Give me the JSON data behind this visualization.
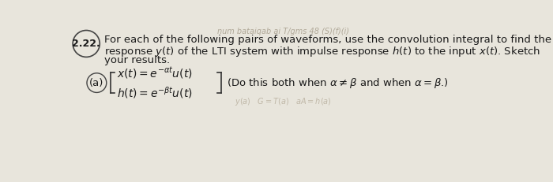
{
  "background_color": "#e8e5dc",
  "problem_number": "2.22.",
  "main_text_line1": "For each of the following pairs of waveforms, use the convolution integral to find the",
  "main_text_line2": "response $y(t)$ of the LTI system with impulse response $h(t)$ to the input $x(t)$. Sketch",
  "main_text_line3": "your results.",
  "part_label": "(a)",
  "eq1": "$x(t) = e^{-\\alpha t}u(t)$",
  "eq2": "$h(t) = e^{-\\beta t}u(t)$",
  "note": "(Do this both when $\\alpha \\neq \\beta$ and when $\\alpha = \\beta$.)",
  "header_text": "num bataiqab ai T/gms 48 (S)(f)(i)",
  "font_size_main": 9.5,
  "font_size_eq": 10,
  "text_color": "#1a1a1a",
  "faded_color": "#b0a898"
}
